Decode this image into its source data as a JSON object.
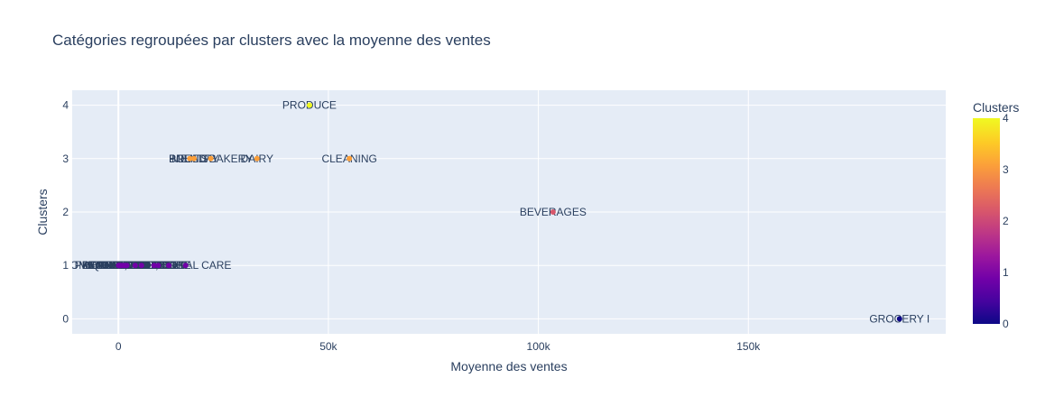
{
  "chart_data": {
    "type": "scatter",
    "title": "Catégories regroupées par clusters avec la moyenne des ventes",
    "xlabel": "Moyenne des ventes",
    "ylabel": "Clusters",
    "xlim": [
      -11000,
      197000
    ],
    "ylim": [
      -0.28,
      4.28
    ],
    "x_ticks": [
      0,
      50000,
      100000,
      150000
    ],
    "x_tick_labels": [
      "0",
      "50k",
      "100k",
      "150k"
    ],
    "y_ticks": [
      0,
      1,
      2,
      3,
      4
    ],
    "y_tick_labels": [
      "0",
      "1",
      "2",
      "3",
      "4"
    ],
    "grid": true,
    "colorbar": {
      "title": "Clusters",
      "range": [
        0,
        4
      ],
      "ticks": [
        "0",
        "1",
        "2",
        "3",
        "4"
      ],
      "colors": [
        "#0d0887",
        "#46039f",
        "#7201a8",
        "#9c179e",
        "#bd3786",
        "#d8576b",
        "#ed7953",
        "#fb9f3a",
        "#fdca26",
        "#f0f921"
      ]
    },
    "points": [
      {
        "label": "GROCERY I",
        "x": 186000,
        "y": 0
      },
      {
        "label": "BEVERAGES",
        "x": 103500,
        "y": 2
      },
      {
        "label": "PRODUCE",
        "x": 45500,
        "y": 4
      },
      {
        "label": "CLEANING",
        "x": 55000,
        "y": 3
      },
      {
        "label": "DAIRY",
        "x": 33000,
        "y": 3
      },
      {
        "label": "BREAD/BAKERY",
        "x": 22000,
        "y": 3
      },
      {
        "label": "POULTRY",
        "x": 18000,
        "y": 3
      },
      {
        "label": "MEATS",
        "x": 17000,
        "y": 3
      },
      {
        "label": "PERSONAL CARE",
        "x": 16000,
        "y": 1
      },
      {
        "label": "DELI",
        "x": 12000,
        "y": 1
      },
      {
        "label": "HOME CARE",
        "x": 9500,
        "y": 1
      },
      {
        "label": "EGGS",
        "x": 8500,
        "y": 1
      },
      {
        "label": "FROZEN FOODS",
        "x": 5500,
        "y": 1
      },
      {
        "label": "LIQUOR,WINE,BEER",
        "x": 4000,
        "y": 1
      },
      {
        "label": "GROCERY II",
        "x": 2000,
        "y": 1
      },
      {
        "label": "PREPARED FOODS",
        "x": 1500,
        "y": 1
      },
      {
        "label": "SEAFOOD",
        "x": 1000,
        "y": 1
      },
      {
        "label": "LADIESWEAR",
        "x": 500,
        "y": 1
      },
      {
        "label": "HOME AND KITCHEN I",
        "x": 300,
        "y": 1
      },
      {
        "label": "AUTOMOTIVE",
        "x": 100,
        "y": 1
      },
      {
        "label": "BABY CARE",
        "x": 50,
        "y": 1
      }
    ]
  }
}
